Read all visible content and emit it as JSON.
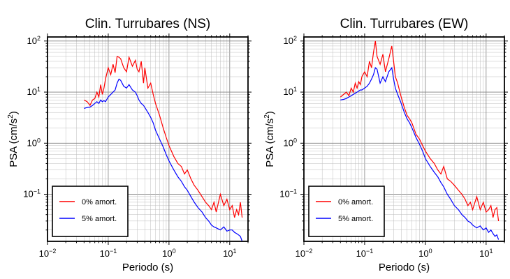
{
  "chart_data": [
    {
      "type": "line",
      "title": "Clin. Turrubares (NS)",
      "xlabel": "Periodo (s)",
      "ylabel_main": "PSA (cm/s",
      "ylabel_sup": "2",
      "ylabel_close": ")",
      "xscale": "log",
      "yscale": "log",
      "xlim": [
        0.01,
        20
      ],
      "ylim": [
        0.012,
        120
      ],
      "grid": true,
      "legend_position": "bottom-left",
      "x_ticks": [
        {
          "value": 0.01,
          "base": "10",
          "exp": "−2"
        },
        {
          "value": 0.1,
          "base": "10",
          "exp": "−1"
        },
        {
          "value": 1,
          "base": "10",
          "exp": "0"
        },
        {
          "value": 10,
          "base": "10",
          "exp": "1"
        }
      ],
      "y_ticks": [
        {
          "value": 0.1,
          "base": "10",
          "exp": "−1"
        },
        {
          "value": 1,
          "base": "10",
          "exp": "0"
        },
        {
          "value": 10,
          "base": "10",
          "exp": "1"
        },
        {
          "value": 100,
          "base": "10",
          "exp": "2"
        }
      ],
      "series": [
        {
          "name": "0% amort.",
          "color": "#ff0000",
          "x": [
            0.04,
            0.045,
            0.05,
            0.055,
            0.06,
            0.065,
            0.07,
            0.075,
            0.08,
            0.085,
            0.09,
            0.1,
            0.11,
            0.12,
            0.13,
            0.14,
            0.15,
            0.16,
            0.18,
            0.2,
            0.22,
            0.25,
            0.28,
            0.3,
            0.32,
            0.35,
            0.38,
            0.4,
            0.45,
            0.5,
            0.55,
            0.6,
            0.7,
            0.8,
            0.9,
            1.0,
            1.2,
            1.4,
            1.6,
            1.8,
            2.0,
            2.3,
            2.6,
            3.0,
            3.5,
            4.0,
            4.5,
            5.0,
            5.5,
            6.0,
            7.0,
            8.0,
            9.0,
            10.0,
            11.0,
            12.0,
            13.0,
            14.0,
            15.0,
            16.0
          ],
          "y": [
            7,
            6.5,
            5.5,
            7,
            7.5,
            10,
            8,
            14,
            9,
            12,
            18,
            30,
            22,
            35,
            24,
            50,
            48,
            45,
            30,
            25,
            48,
            32,
            42,
            28,
            25,
            40,
            15,
            30,
            12,
            15,
            9,
            6,
            3.5,
            2.0,
            1.3,
            0.9,
            0.55,
            0.4,
            0.35,
            0.25,
            0.3,
            0.2,
            0.15,
            0.12,
            0.09,
            0.07,
            0.06,
            0.05,
            0.07,
            0.045,
            0.1,
            0.06,
            0.08,
            0.05,
            0.06,
            0.035,
            0.05,
            0.04,
            0.07,
            0.035
          ]
        },
        {
          "name": "5% amort.",
          "color": "#0000ff",
          "x": [
            0.04,
            0.045,
            0.05,
            0.055,
            0.06,
            0.065,
            0.07,
            0.075,
            0.08,
            0.085,
            0.09,
            0.1,
            0.11,
            0.12,
            0.13,
            0.14,
            0.15,
            0.16,
            0.18,
            0.2,
            0.22,
            0.25,
            0.28,
            0.3,
            0.32,
            0.35,
            0.38,
            0.4,
            0.45,
            0.5,
            0.55,
            0.6,
            0.7,
            0.8,
            0.9,
            1.0,
            1.2,
            1.4,
            1.6,
            1.8,
            2.0,
            2.3,
            2.6,
            3.0,
            3.5,
            4.0,
            4.5,
            5.0,
            5.5,
            6.0,
            7.0,
            8.0,
            9.0,
            10.0,
            11.0,
            12.0,
            13.0,
            14.0,
            15.0,
            16.0
          ],
          "y": [
            4.8,
            5,
            5.1,
            5.5,
            6,
            6.5,
            6,
            7,
            6.5,
            6.8,
            6.5,
            8,
            9,
            10,
            11,
            15,
            18,
            17,
            13,
            12,
            14,
            11,
            10,
            8.5,
            7,
            6,
            5.5,
            5,
            4,
            3.2,
            2.5,
            1.8,
            1.2,
            0.85,
            0.6,
            0.45,
            0.3,
            0.22,
            0.18,
            0.14,
            0.12,
            0.09,
            0.07,
            0.055,
            0.045,
            0.035,
            0.03,
            0.025,
            0.023,
            0.022,
            0.02,
            0.023,
            0.019,
            0.02,
            0.02,
            0.018,
            0.017,
            0.016,
            0.015,
            0.012
          ]
        }
      ]
    },
    {
      "type": "line",
      "title": "Clin. Turrubares (EW)",
      "xlabel": "Periodo (s)",
      "ylabel_main": "PSA (cm/s",
      "ylabel_sup": "2",
      "ylabel_close": ")",
      "xscale": "log",
      "yscale": "log",
      "xlim": [
        0.01,
        20
      ],
      "ylim": [
        0.012,
        120
      ],
      "grid": true,
      "legend_position": "bottom-left",
      "x_ticks": [
        {
          "value": 0.01,
          "base": "10",
          "exp": "−2"
        },
        {
          "value": 0.1,
          "base": "10",
          "exp": "−1"
        },
        {
          "value": 1,
          "base": "10",
          "exp": "0"
        },
        {
          "value": 10,
          "base": "10",
          "exp": "1"
        }
      ],
      "y_ticks": [
        {
          "value": 0.1,
          "base": "10",
          "exp": "−1"
        },
        {
          "value": 1,
          "base": "10",
          "exp": "0"
        },
        {
          "value": 10,
          "base": "10",
          "exp": "1"
        },
        {
          "value": 100,
          "base": "10",
          "exp": "2"
        }
      ],
      "series": [
        {
          "name": "0% amort.",
          "color": "#ff0000",
          "x": [
            0.04,
            0.045,
            0.05,
            0.055,
            0.06,
            0.065,
            0.07,
            0.075,
            0.08,
            0.085,
            0.09,
            0.1,
            0.11,
            0.12,
            0.13,
            0.14,
            0.15,
            0.16,
            0.18,
            0.2,
            0.22,
            0.25,
            0.28,
            0.3,
            0.32,
            0.35,
            0.38,
            0.4,
            0.45,
            0.5,
            0.55,
            0.6,
            0.7,
            0.8,
            0.9,
            1.0,
            1.2,
            1.4,
            1.6,
            1.8,
            2.0,
            2.3,
            2.6,
            3.0,
            3.5,
            4.0,
            4.5,
            5.0,
            5.5,
            6.0,
            7.0,
            8.0,
            9.0,
            10.0,
            11.0,
            12.0,
            13.0,
            14.0,
            15.0,
            16.0
          ],
          "y": [
            8,
            9,
            10,
            8.5,
            12,
            10,
            15,
            12,
            16,
            14,
            20,
            25,
            20,
            40,
            30,
            60,
            100,
            50,
            35,
            55,
            25,
            45,
            80,
            40,
            20,
            15,
            10,
            8,
            5,
            3.5,
            3,
            2.5,
            1.5,
            1.2,
            0.9,
            0.7,
            0.5,
            0.4,
            0.3,
            0.25,
            0.35,
            0.2,
            0.18,
            0.15,
            0.12,
            0.1,
            0.08,
            0.06,
            0.07,
            0.05,
            0.09,
            0.05,
            0.07,
            0.045,
            0.05,
            0.06,
            0.035,
            0.05,
            0.055,
            0.03
          ]
        },
        {
          "name": "5% amort.",
          "color": "#0000ff",
          "x": [
            0.04,
            0.045,
            0.05,
            0.055,
            0.06,
            0.065,
            0.07,
            0.075,
            0.08,
            0.085,
            0.09,
            0.1,
            0.11,
            0.12,
            0.13,
            0.14,
            0.15,
            0.16,
            0.18,
            0.2,
            0.22,
            0.25,
            0.28,
            0.3,
            0.32,
            0.35,
            0.38,
            0.4,
            0.45,
            0.5,
            0.55,
            0.6,
            0.7,
            0.8,
            0.9,
            1.0,
            1.2,
            1.4,
            1.6,
            1.8,
            2.0,
            2.3,
            2.6,
            3.0,
            3.5,
            4.0,
            4.5,
            5.0,
            5.5,
            6.0,
            7.0,
            8.0,
            9.0,
            10.0,
            11.0,
            12.0,
            13.0,
            14.0,
            15.0,
            16.0
          ],
          "y": [
            7,
            7.2,
            7.5,
            8,
            8.5,
            9,
            9.5,
            10,
            10.5,
            11,
            11,
            12,
            13,
            15,
            18,
            22,
            30,
            28,
            15,
            20,
            16,
            25,
            30,
            18,
            12,
            9,
            7,
            6,
            4,
            3,
            2.5,
            2,
            1.3,
            0.95,
            0.7,
            0.5,
            0.35,
            0.27,
            0.22,
            0.17,
            0.14,
            0.1,
            0.08,
            0.06,
            0.05,
            0.04,
            0.035,
            0.03,
            0.028,
            0.025,
            0.022,
            0.024,
            0.02,
            0.022,
            0.018,
            0.02,
            0.017,
            0.015,
            0.016,
            0.013
          ]
        }
      ]
    }
  ]
}
